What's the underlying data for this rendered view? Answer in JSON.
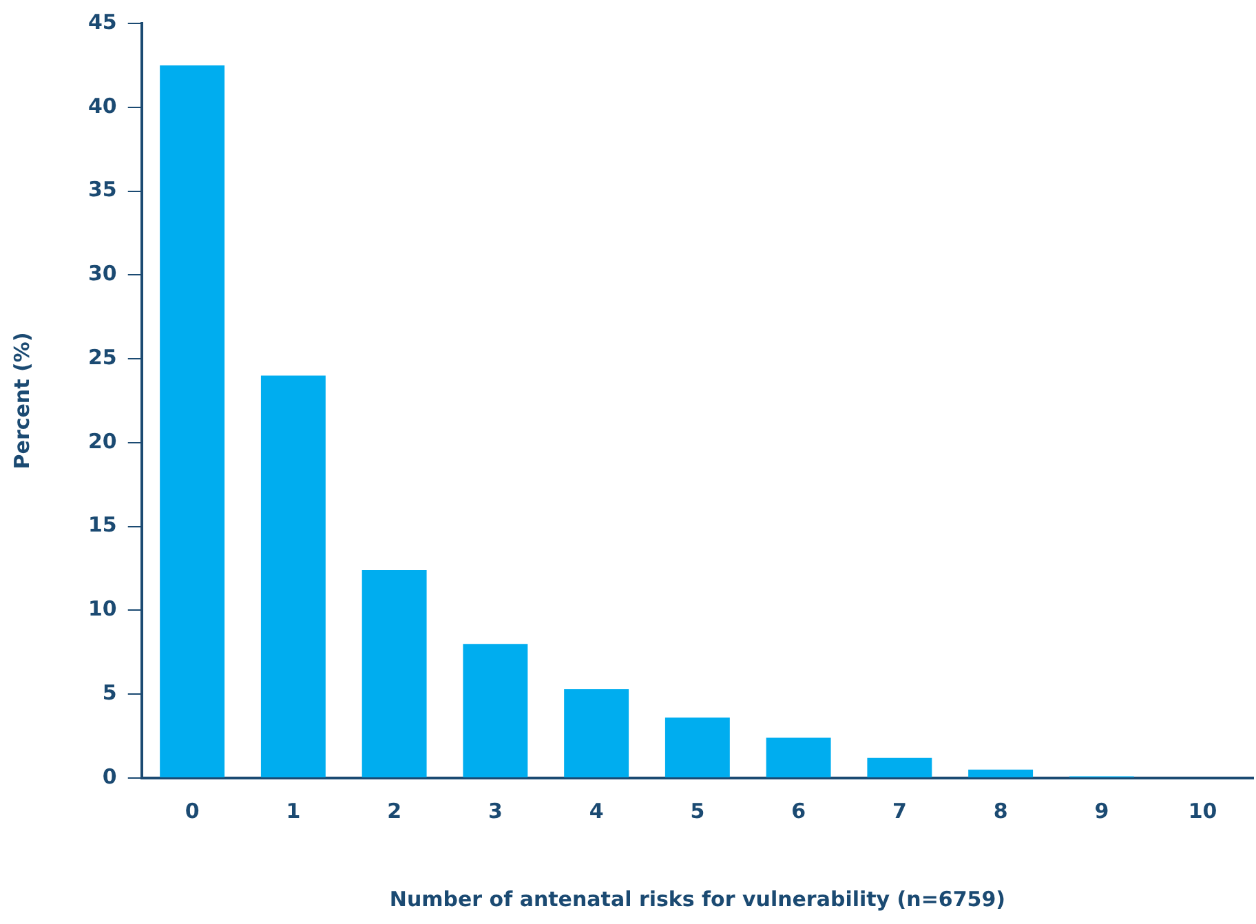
{
  "chart_data": {
    "type": "bar",
    "xlabel": "Number of antenatal risks for vulnerability (n=6759)",
    "ylabel": "Percent (%)",
    "categories": [
      "0",
      "1",
      "2",
      "3",
      "4",
      "5",
      "6",
      "7",
      "8",
      "9",
      "10"
    ],
    "values": [
      42.5,
      24.0,
      12.4,
      8.0,
      5.3,
      3.6,
      2.4,
      1.2,
      0.5,
      0.1,
      0
    ],
    "color": "#00adef",
    "ylim": [
      0,
      45
    ],
    "yticks": [
      0,
      5,
      10,
      15,
      20,
      25,
      30,
      35,
      40,
      45
    ],
    "grid": false,
    "legend": false
  }
}
